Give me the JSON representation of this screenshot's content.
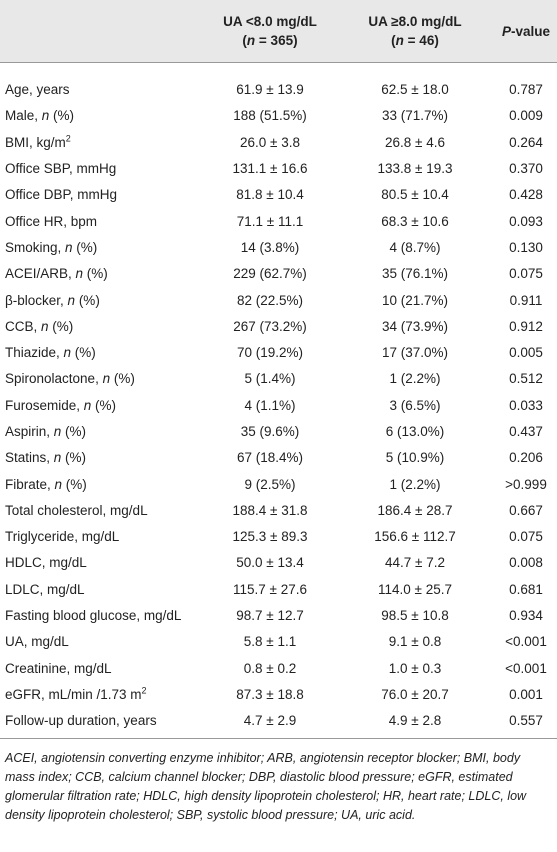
{
  "table": {
    "header": [
      [],
      [
        [
          "UA <8.0 mg/dL"
        ],
        [
          "(",
          {
            "t": "n",
            "f": "i"
          },
          " = 365)"
        ]
      ],
      [
        [
          "UA ≥8.0 mg/dL"
        ],
        [
          "(",
          {
            "t": "n",
            "f": "i"
          },
          " = 46)"
        ]
      ],
      [
        [
          {
            "t": "P",
            "f": "i"
          },
          "-value"
        ]
      ]
    ],
    "rows": [
      [
        [
          "Age, years"
        ],
        "61.9 ± 13.9",
        "62.5 ± 18.0",
        "0.787"
      ],
      [
        [
          "Male, ",
          {
            "t": "n",
            "f": "i"
          },
          " (%)"
        ],
        "188 (51.5%)",
        "33 (71.7%)",
        "0.009"
      ],
      [
        [
          "BMI, kg/m",
          {
            "t": "2",
            "f": "sup"
          }
        ],
        "26.0 ± 3.8",
        "26.8 ± 4.6",
        "0.264"
      ],
      [
        [
          "Office SBP, mmHg"
        ],
        "131.1 ± 16.6",
        "133.8 ± 19.3",
        "0.370"
      ],
      [
        [
          "Office DBP, mmHg"
        ],
        "81.8 ± 10.4",
        "80.5 ± 10.4",
        "0.428"
      ],
      [
        [
          "Office HR, bpm"
        ],
        "71.1 ± 11.1",
        "68.3 ± 10.6",
        "0.093"
      ],
      [
        [
          "Smoking, ",
          {
            "t": "n",
            "f": "i"
          },
          " (%)"
        ],
        "14 (3.8%)",
        "4 (8.7%)",
        "0.130"
      ],
      [
        [
          "ACEI/ARB, ",
          {
            "t": "n",
            "f": "i"
          },
          " (%)"
        ],
        "229 (62.7%)",
        "35 (76.1%)",
        "0.075"
      ],
      [
        [
          "β-blocker, ",
          {
            "t": "n",
            "f": "i"
          },
          " (%)"
        ],
        "82 (22.5%)",
        "10 (21.7%)",
        "0.911"
      ],
      [
        [
          "CCB, ",
          {
            "t": "n",
            "f": "i"
          },
          " (%)"
        ],
        "267 (73.2%)",
        "34 (73.9%)",
        "0.912"
      ],
      [
        [
          "Thiazide, ",
          {
            "t": "n",
            "f": "i"
          },
          " (%)"
        ],
        "70 (19.2%)",
        "17 (37.0%)",
        "0.005"
      ],
      [
        [
          "Spironolactone, ",
          {
            "t": "n",
            "f": "i"
          },
          " (%)"
        ],
        "5 (1.4%)",
        "1 (2.2%)",
        "0.512"
      ],
      [
        [
          "Furosemide, ",
          {
            "t": "n",
            "f": "i"
          },
          " (%)"
        ],
        "4 (1.1%)",
        "3 (6.5%)",
        "0.033"
      ],
      [
        [
          "Aspirin, ",
          {
            "t": "n",
            "f": "i"
          },
          " (%)"
        ],
        "35 (9.6%)",
        "6 (13.0%)",
        "0.437"
      ],
      [
        [
          "Statins, ",
          {
            "t": "n",
            "f": "i"
          },
          " (%)"
        ],
        "67 (18.4%)",
        "5 (10.9%)",
        "0.206"
      ],
      [
        [
          "Fibrate, ",
          {
            "t": "n",
            "f": "i"
          },
          " (%)"
        ],
        "9 (2.5%)",
        "1 (2.2%)",
        ">0.999"
      ],
      [
        [
          "Total cholesterol, mg/dL"
        ],
        "188.4 ± 31.8",
        "186.4 ± 28.7",
        "0.667"
      ],
      [
        [
          "Triglyceride, mg/dL"
        ],
        "125.3 ± 89.3",
        "156.6 ± 112.7",
        "0.075"
      ],
      [
        [
          "HDLC, mg/dL"
        ],
        "50.0 ± 13.4",
        "44.7 ± 7.2",
        "0.008"
      ],
      [
        [
          "LDLC, mg/dL"
        ],
        "115.7 ± 27.6",
        "114.0 ± 25.7",
        "0.681"
      ],
      [
        [
          "Fasting blood glucose, mg/dL"
        ],
        "98.7 ± 12.7",
        "98.5 ± 10.8",
        "0.934"
      ],
      [
        [
          "UA, mg/dL"
        ],
        "5.8 ± 1.1",
        "9.1 ± 0.8",
        "<0.001"
      ],
      [
        [
          "Creatinine, mg/dL"
        ],
        "0.8 ± 0.2",
        "1.0 ± 0.3",
        "<0.001"
      ],
      [
        [
          "eGFR, mL/min /1.73 m",
          {
            "t": "2",
            "f": "sup"
          }
        ],
        "87.3 ± 18.8",
        "76.0 ± 20.7",
        "0.001"
      ],
      [
        [
          "Follow-up duration, years"
        ],
        "4.7 ± 2.9",
        "4.9 ± 2.8",
        "0.557"
      ]
    ]
  },
  "footnote": "ACEI, angiotensin converting enzyme inhibitor; ARB, angiotensin receptor blocker; BMI, body mass index; CCB, calcium channel blocker; DBP, diastolic blood pressure; eGFR, estimated glomerular filtration rate; HDLC, high density lipoprotein cholesterol; HR, heart rate; LDLC, low density lipoprotein cholesterol; SBP, systolic blood pressure; UA, uric acid."
}
